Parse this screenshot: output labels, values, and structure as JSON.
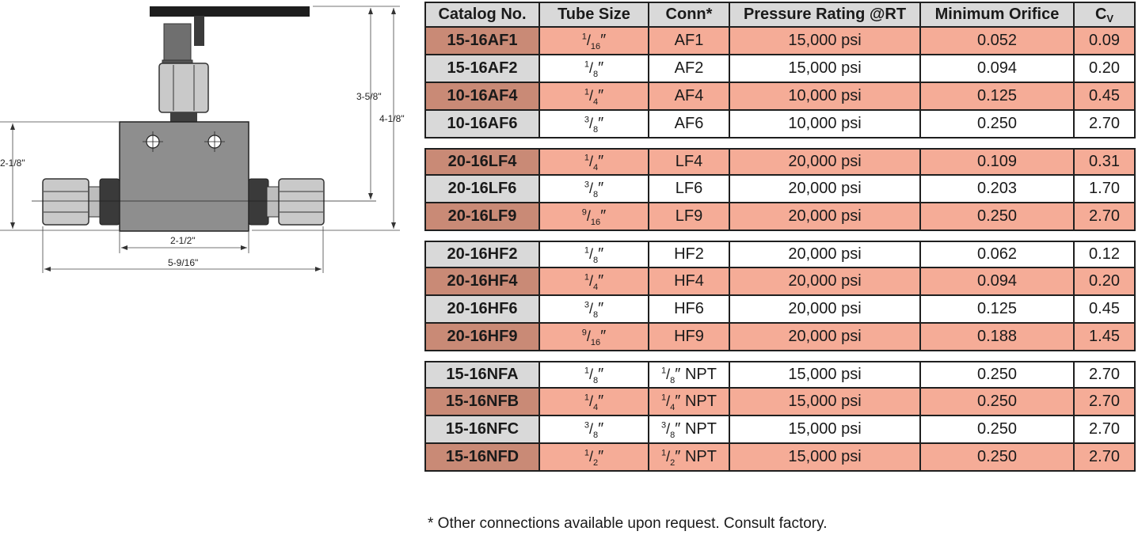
{
  "dimensions": {
    "overall_height": "4-1/8\"",
    "stem_height": "3-5/8\"",
    "body_height": "2-1/8\"",
    "body_width": "2-1/2\"",
    "overall_length": "5-9/16\""
  },
  "table": {
    "headers": {
      "catalog": "Catalog No.",
      "tube": "Tube Size",
      "conn": "Conn*",
      "pressure": "Pressure Rating @RT",
      "orifice": "Minimum Orifice",
      "cv_main": "C",
      "cv_sub": "V"
    },
    "rows": [
      {
        "catalog": "15-16AF1",
        "tube_num": "1",
        "tube_den": "16",
        "conn": "AF1",
        "pressure": "15,000 psi",
        "orifice": "0.052",
        "cv": "0.09"
      },
      {
        "catalog": "15-16AF2",
        "tube_num": "1",
        "tube_den": "8",
        "conn": "AF2",
        "pressure": "15,000 psi",
        "orifice": "0.094",
        "cv": "0.20"
      },
      {
        "catalog": "10-16AF4",
        "tube_num": "1",
        "tube_den": "4",
        "conn": "AF4",
        "pressure": "10,000 psi",
        "orifice": "0.125",
        "cv": "0.45"
      },
      {
        "catalog": "10-16AF6",
        "tube_num": "3",
        "tube_den": "8",
        "conn": "AF6",
        "pressure": "10,000 psi",
        "orifice": "0.250",
        "cv": "2.70"
      },
      {
        "catalog": "20-16LF4",
        "tube_num": "1",
        "tube_den": "4",
        "conn": "LF4",
        "pressure": "20,000 psi",
        "orifice": "0.109",
        "cv": "0.31"
      },
      {
        "catalog": "20-16LF6",
        "tube_num": "3",
        "tube_den": "8",
        "conn": "LF6",
        "pressure": "20,000 psi",
        "orifice": "0.203",
        "cv": "1.70"
      },
      {
        "catalog": "20-16LF9",
        "tube_num": "9",
        "tube_den": "16",
        "conn": "LF9",
        "pressure": "20,000 psi",
        "orifice": "0.250",
        "cv": "2.70"
      },
      {
        "catalog": "20-16HF2",
        "tube_num": "1",
        "tube_den": "8",
        "conn": "HF2",
        "pressure": "20,000 psi",
        "orifice": "0.062",
        "cv": "0.12"
      },
      {
        "catalog": "20-16HF4",
        "tube_num": "1",
        "tube_den": "4",
        "conn": "HF4",
        "pressure": "20,000 psi",
        "orifice": "0.094",
        "cv": "0.20"
      },
      {
        "catalog": "20-16HF6",
        "tube_num": "3",
        "tube_den": "8",
        "conn": "HF6",
        "pressure": "20,000 psi",
        "orifice": "0.125",
        "cv": "0.45"
      },
      {
        "catalog": "20-16HF9",
        "tube_num": "9",
        "tube_den": "16",
        "conn": "HF9",
        "pressure": "20,000 psi",
        "orifice": "0.188",
        "cv": "1.45"
      },
      {
        "catalog": "15-16NFA",
        "tube_num": "1",
        "tube_den": "8",
        "conn_num": "1",
        "conn_den": "8",
        "conn_suffix": "NPT",
        "pressure": "15,000 psi",
        "orifice": "0.250",
        "cv": "2.70"
      },
      {
        "catalog": "15-16NFB",
        "tube_num": "1",
        "tube_den": "4",
        "conn_num": "1",
        "conn_den": "4",
        "conn_suffix": "NPT",
        "pressure": "15,000 psi",
        "orifice": "0.250",
        "cv": "2.70"
      },
      {
        "catalog": "15-16NFC",
        "tube_num": "3",
        "tube_den": "8",
        "conn_num": "3",
        "conn_den": "8",
        "conn_suffix": "NPT",
        "pressure": "15,000 psi",
        "orifice": "0.250",
        "cv": "2.70"
      },
      {
        "catalog": "15-16NFD",
        "tube_num": "1",
        "tube_den": "2",
        "conn_num": "1",
        "conn_den": "2",
        "conn_suffix": "NPT",
        "pressure": "15,000 psi",
        "orifice": "0.250",
        "cv": "2.70"
      }
    ]
  },
  "footnote": "* Other connections available upon request. Consult factory.",
  "colors": {
    "salmon": "#f5ac97",
    "catalog_salmon": "#c98a76",
    "catalog_gray": "#d9d9d9",
    "body_gray": "#8e8e8e"
  }
}
